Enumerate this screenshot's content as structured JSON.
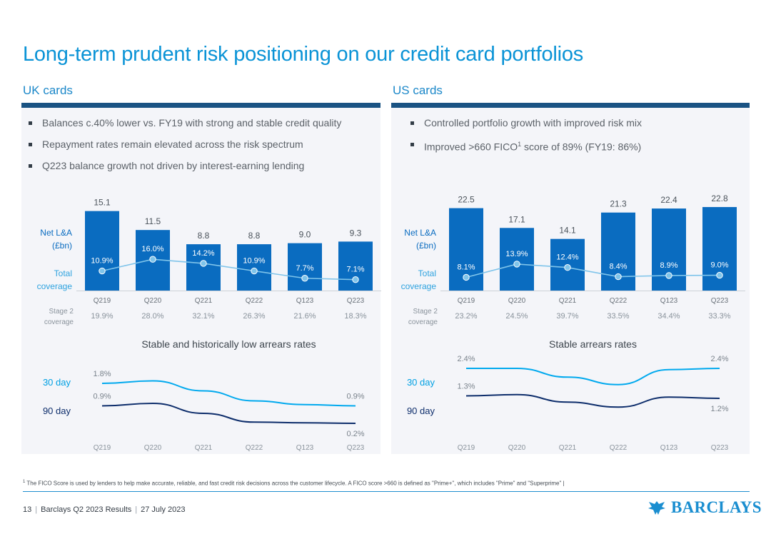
{
  "title": "Long-term prudent risk positioning on our credit card portfolios",
  "colors": {
    "accent": "#0a93d6",
    "bar": "#0a6cc0",
    "coverage_line": "#7fc4ea",
    "day30_line": "#00a9ee",
    "day90_line": "#0d2d6b",
    "navy_rule": "#1a5383"
  },
  "uk": {
    "heading": "UK cards",
    "bullets": [
      "Balances c.40% lower vs. FY19 with strong and stable credit quality",
      "Repayment rates remain elevated across the risk spectrum",
      "Q223 balance growth not driven by interest-earning lending"
    ]
  },
  "us": {
    "heading": "US cards",
    "bullets": [
      "Controlled portfolio growth with improved risk mix",
      "Improved >660 FICO",
      "1",
      " score of 89% (FY19: 86%)"
    ]
  },
  "chart_data": [
    {
      "id": "uk",
      "type": "bar",
      "series_label": "Net L&A (£bn)",
      "line_label": "Total coverage",
      "row_label": "Stage 2 coverage",
      "categories": [
        "Q219",
        "Q220",
        "Q221",
        "Q222",
        "Q123",
        "Q223"
      ],
      "values": [
        15.1,
        11.5,
        8.8,
        8.8,
        9.0,
        9.3
      ],
      "value_labels": [
        "15.1",
        "11.5",
        "8.8",
        "8.8",
        "9.0",
        "9.3"
      ],
      "coverage": [
        10.9,
        16.0,
        14.2,
        10.9,
        7.7,
        7.1
      ],
      "coverage_labels": [
        "10.9%",
        "16.0%",
        "14.2%",
        "10.9%",
        "7.7%",
        "7.1%"
      ],
      "stage2": [
        "19.9%",
        "28.0%",
        "32.1%",
        "26.3%",
        "21.6%",
        "18.3%"
      ],
      "ylim": [
        0,
        16
      ]
    },
    {
      "id": "us",
      "type": "bar",
      "series_label": "Net L&A (£bn)",
      "line_label": "Total coverage",
      "row_label": "Stage 2 coverage",
      "categories": [
        "Q219",
        "Q220",
        "Q221",
        "Q222",
        "Q123",
        "Q223"
      ],
      "values": [
        22.5,
        17.1,
        14.1,
        21.3,
        22.4,
        22.8
      ],
      "value_labels": [
        "22.5",
        "17.1",
        "14.1",
        "21.3",
        "22.4",
        "22.8"
      ],
      "coverage": [
        8.1,
        13.9,
        12.4,
        8.4,
        8.9,
        9.0
      ],
      "coverage_labels": [
        "8.1%",
        "13.9%",
        "12.4%",
        "8.4%",
        "8.9%",
        "9.0%"
      ],
      "stage2": [
        "23.2%",
        "24.5%",
        "39.7%",
        "33.5%",
        "34.4%",
        "33.3%"
      ],
      "ylim": [
        0,
        23
      ]
    },
    {
      "id": "uk_arrears",
      "type": "line",
      "title": "Stable and historically low arrears rates",
      "categories": [
        "Q219",
        "Q220",
        "Q221",
        "Q222",
        "Q123",
        "Q223"
      ],
      "series": [
        {
          "name": "30 day",
          "values": [
            1.8,
            1.9,
            1.5,
            1.1,
            0.95,
            0.9
          ],
          "start_label": "1.8%",
          "end_label": "0.9%"
        },
        {
          "name": "90 day",
          "values": [
            0.9,
            1.0,
            0.6,
            0.25,
            0.22,
            0.2
          ],
          "start_label": "0.9%",
          "end_label": "0.2%"
        }
      ]
    },
    {
      "id": "us_arrears",
      "type": "line",
      "title": "Stable arrears rates",
      "categories": [
        "Q219",
        "Q220",
        "Q221",
        "Q222",
        "Q123",
        "Q223"
      ],
      "series": [
        {
          "name": "30 day",
          "values": [
            2.4,
            2.4,
            2.05,
            1.75,
            2.35,
            2.4
          ],
          "start_label": "2.4%",
          "end_label": "2.4%"
        },
        {
          "name": "90 day",
          "values": [
            1.3,
            1.35,
            1.05,
            0.85,
            1.25,
            1.2
          ],
          "start_label": "1.3%",
          "end_label": "1.2%"
        }
      ]
    }
  ],
  "footnote_marker": "1",
  "footnote": " The FICO Score is used by lenders to help make accurate, reliable, and fast credit risk decisions across the customer lifecycle. A FICO score >660 is defined as \"Prime+\", which includes \"Prime\" and \"Superprime\" |",
  "footer": {
    "page": "13",
    "doc": "Barclays Q2 2023 Results",
    "date": "27 July 2023"
  },
  "logo_text": "BARCLAYS"
}
